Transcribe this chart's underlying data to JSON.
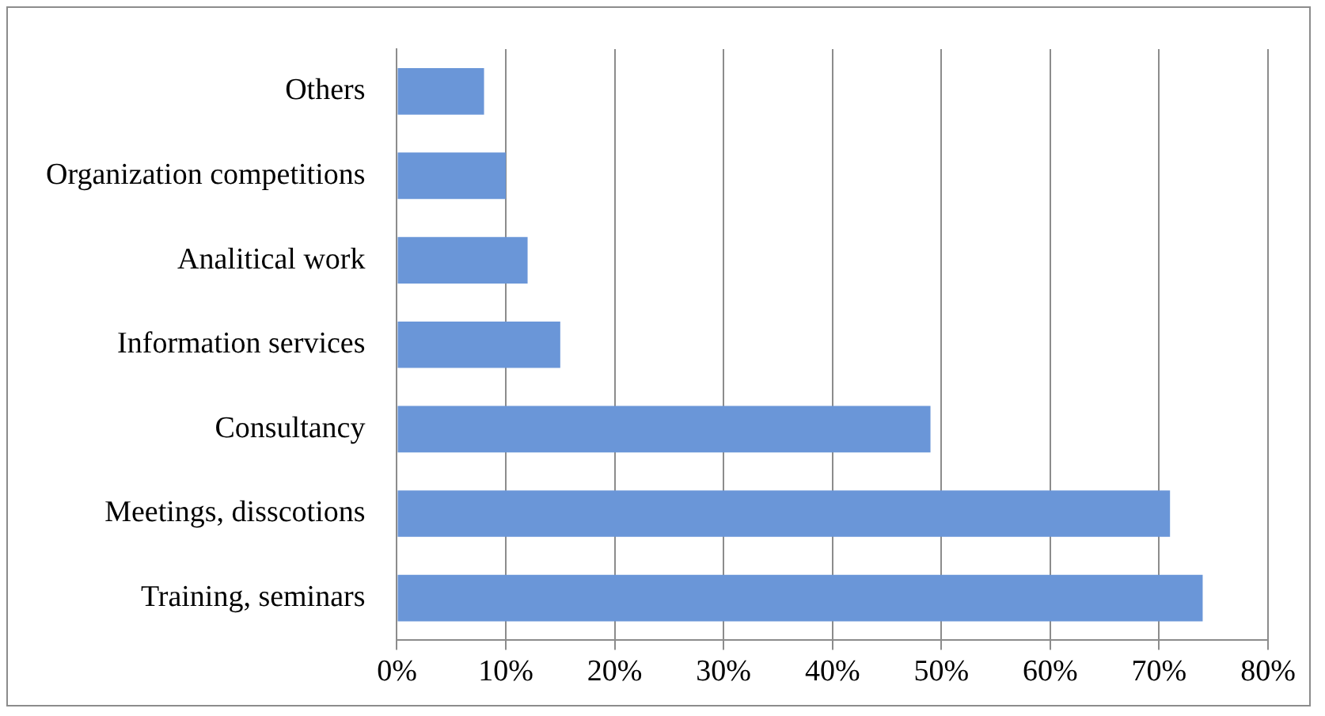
{
  "chart_data": {
    "type": "bar",
    "orientation": "horizontal",
    "categories": [
      "Others",
      "Organization competitions",
      "Analitical work",
      "Information services",
      "Consultancy",
      "Meetings, disscotions",
      "Training, seminars"
    ],
    "values": [
      8,
      10,
      12,
      15,
      49,
      71,
      74
    ],
    "color": "#6a96d8",
    "xlim": [
      0,
      80
    ],
    "xticks": [
      {
        "value": 0,
        "label": "0%"
      },
      {
        "value": 10,
        "label": "10%"
      },
      {
        "value": 20,
        "label": "20%"
      },
      {
        "value": 30,
        "label": "30%"
      },
      {
        "value": 40,
        "label": "40%"
      },
      {
        "value": 50,
        "label": "50%"
      },
      {
        "value": 60,
        "label": "60%"
      },
      {
        "value": 70,
        "label": "70%"
      },
      {
        "value": 80,
        "label": "80%"
      }
    ],
    "grid": "x",
    "legend": false
  }
}
